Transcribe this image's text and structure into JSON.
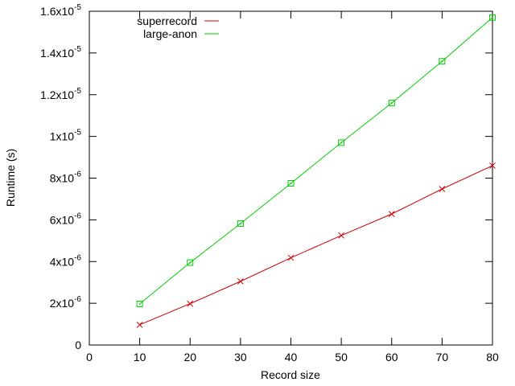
{
  "chart_data": {
    "type": "line",
    "title": "",
    "xlabel": "Record size",
    "ylabel": "Runtime (s)",
    "xlim": [
      0,
      80
    ],
    "ylim": [
      0,
      1.6e-05
    ],
    "grid": false,
    "legend_position": "top-left",
    "x_ticks": [
      {
        "value": 0,
        "label": "0"
      },
      {
        "value": 10,
        "label": "10"
      },
      {
        "value": 20,
        "label": "20"
      },
      {
        "value": 30,
        "label": "30"
      },
      {
        "value": 40,
        "label": "40"
      },
      {
        "value": 50,
        "label": "50"
      },
      {
        "value": 60,
        "label": "60"
      },
      {
        "value": 70,
        "label": "70"
      },
      {
        "value": 80,
        "label": "80"
      }
    ],
    "y_ticks": [
      {
        "value": 0,
        "mantissa": "0",
        "exponent": ""
      },
      {
        "value": 2e-06,
        "mantissa": "2x10",
        "exponent": "-6"
      },
      {
        "value": 4e-06,
        "mantissa": "4x10",
        "exponent": "-6"
      },
      {
        "value": 6e-06,
        "mantissa": "6x10",
        "exponent": "-6"
      },
      {
        "value": 8e-06,
        "mantissa": "8x10",
        "exponent": "-6"
      },
      {
        "value": 1e-05,
        "mantissa": "1x10",
        "exponent": "-5"
      },
      {
        "value": 1.2e-05,
        "mantissa": "1.2x10",
        "exponent": "-5"
      },
      {
        "value": 1.4e-05,
        "mantissa": "1.4x10",
        "exponent": "-5"
      },
      {
        "value": 1.6e-05,
        "mantissa": "1.6x10",
        "exponent": "-5"
      }
    ],
    "x": [
      10,
      20,
      30,
      40,
      50,
      60,
      70,
      80
    ],
    "series": [
      {
        "name": "superrecord",
        "color": "#cc0000",
        "marker": "x-mark",
        "values": [
          9.7e-07,
          1.98e-06,
          3.05e-06,
          4.18e-06,
          5.25e-06,
          6.28e-06,
          7.48e-06,
          8.6e-06
        ]
      },
      {
        "name": "large-anon",
        "color": "#00cc00",
        "marker": "square-dot",
        "values": [
          1.97e-06,
          3.95e-06,
          5.82e-06,
          7.75e-06,
          9.7e-06,
          1.16e-05,
          1.36e-05,
          1.57e-05
        ]
      }
    ]
  }
}
